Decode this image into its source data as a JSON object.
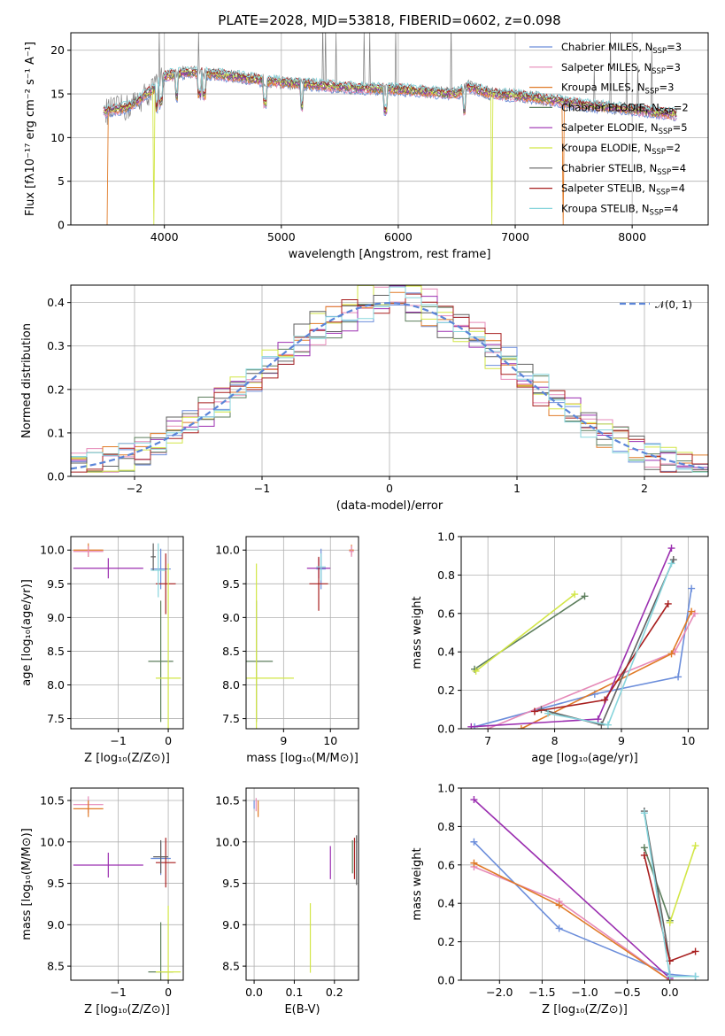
{
  "figure": {
    "title": "PLATE=2028, MJD=53818, FIBERID=0602, z=0.098"
  },
  "palette": [
    "#6c8edb",
    "#e68ab8",
    "#e07b28",
    "#5c7e5c",
    "#9b2fb0",
    "#d2e646",
    "#606060",
    "#a81f1f",
    "#87d5dc"
  ],
  "legend": [
    {
      "text": "Chabrier MILES, N",
      "sub": "SSP",
      "tail": "=3",
      "color": "#6c8edb"
    },
    {
      "text": "Salpeter MILES, N",
      "sub": "SSP",
      "tail": "=3",
      "color": "#e68ab8"
    },
    {
      "text": "Kroupa MILES, N",
      "sub": "SSP",
      "tail": "=3",
      "color": "#e07b28"
    },
    {
      "text": "Chabrier ELODIE, N",
      "sub": "SSP",
      "tail": "=2",
      "color": "#5c7e5c"
    },
    {
      "text": "Salpeter ELODIE, N",
      "sub": "SSP",
      "tail": "=5",
      "color": "#9b2fb0"
    },
    {
      "text": "Kroupa ELODIE, N",
      "sub": "SSP",
      "tail": "=2",
      "color": "#d2e646"
    },
    {
      "text": "Chabrier STELIB, N",
      "sub": "SSP",
      "tail": "=4",
      "color": "#606060"
    },
    {
      "text": "Salpeter STELIB, N",
      "sub": "SSP",
      "tail": "=4",
      "color": "#a81f1f"
    },
    {
      "text": "Kroupa STELIB, N",
      "sub": "SSP",
      "tail": "=4",
      "color": "#87d5dc"
    }
  ],
  "chart_data": [
    {
      "id": "spectrum",
      "type": "line",
      "xlabel": "wavelength [Angstrom, rest frame]",
      "ylabel": "Flux [fλ10⁻¹⁷ erg cm⁻² s⁻¹ A⁻¹]",
      "xlim": [
        3200,
        8650
      ],
      "ylim": [
        0,
        22
      ],
      "xticks": [
        4000,
        5000,
        6000,
        7000,
        8000
      ],
      "yticks": [
        0,
        5,
        10,
        15,
        20
      ],
      "continuum_x": [
        3500,
        3700,
        3900,
        4000,
        4200,
        4400,
        4600,
        4800,
        5000,
        5300,
        5600,
        6000,
        6300,
        6500,
        6600,
        6800,
        7000,
        7200,
        7400,
        7600,
        8000,
        8400
      ],
      "continuum_y": [
        13,
        13.5,
        15.5,
        17,
        17.5,
        17.3,
        17,
        16.6,
        16.3,
        16,
        15.7,
        15.5,
        15.2,
        15,
        15.8,
        15,
        14.8,
        14.5,
        14.1,
        13.7,
        13.2,
        12.6
      ],
      "grid": true
    },
    {
      "id": "residuals",
      "type": "histogram",
      "xlabel": "(data-model)/error",
      "ylabel": "Normed distribution",
      "xlim": [
        -2.5,
        2.5
      ],
      "ylim": [
        0,
        0.44
      ],
      "xticks": [
        -2,
        -1,
        0,
        1,
        2
      ],
      "yticks": [
        0.0,
        0.1,
        0.2,
        0.3,
        0.4
      ],
      "reference": {
        "name": "𝒩(0, 1)",
        "mean": 0,
        "sigma": 1,
        "color": "#5b85d8"
      },
      "bins": 40,
      "grid": true
    },
    {
      "id": "age_vs_Z",
      "type": "errorbar",
      "xlabel": "Z [log₁₀(Z/Z⊙)]",
      "ylabel": "age  [log₁₀(age/yr)]",
      "xlim": [
        -1.95,
        0.3
      ],
      "ylim": [
        7.35,
        10.2
      ],
      "xticks": [
        -1,
        0
      ],
      "yticks": [
        7.5,
        8.0,
        8.5,
        9.0,
        9.5,
        10.0
      ],
      "points": [
        {
          "x": -1.6,
          "y": 10.0,
          "xerr": 0.3,
          "yerr": 0.1,
          "c": 2
        },
        {
          "x": -1.6,
          "y": 9.98,
          "xerr": 0.3,
          "yerr": 0.08,
          "c": 1
        },
        {
          "x": -1.2,
          "y": 9.73,
          "xerr": 0.7,
          "yerr": 0.15,
          "c": 4
        },
        {
          "x": -0.15,
          "y": 9.72,
          "xerr": 0.2,
          "yerr": 0.3,
          "c": 0
        },
        {
          "x": -0.05,
          "y": 9.5,
          "xerr": 0.2,
          "yerr": 0.45,
          "c": 7
        },
        {
          "x": -0.2,
          "y": 9.7,
          "xerr": 0.15,
          "yerr": 0.4,
          "c": 8
        },
        {
          "x": -0.15,
          "y": 8.35,
          "xerr": 0.25,
          "yerr": 0.9,
          "c": 3
        },
        {
          "x": 0.0,
          "y": 8.1,
          "xerr": 0.25,
          "yerr": 1.7,
          "c": 5
        },
        {
          "x": -0.3,
          "y": 9.9,
          "xerr": 0.05,
          "yerr": 0.2,
          "c": 6
        }
      ]
    },
    {
      "id": "age_vs_mass",
      "type": "errorbar",
      "xlabel": "mass [log₁₀(M/M⊙)]",
      "ylabel": "",
      "xlim": [
        8.2,
        10.6
      ],
      "ylim": [
        7.35,
        10.2
      ],
      "xticks": [
        9,
        10
      ],
      "yticks": [
        7.5,
        8.0,
        8.5,
        9.0,
        9.5,
        10.0
      ],
      "points": [
        {
          "x": 10.45,
          "y": 10.0,
          "xerr": 0.05,
          "yerr": 0.08,
          "c": 2
        },
        {
          "x": 10.45,
          "y": 9.98,
          "xerr": 0.05,
          "yerr": 0.08,
          "c": 1
        },
        {
          "x": 9.75,
          "y": 9.73,
          "xerr": 0.25,
          "yerr": 0.15,
          "c": 4
        },
        {
          "x": 9.8,
          "y": 9.72,
          "xerr": 0.1,
          "yerr": 0.3,
          "c": 0
        },
        {
          "x": 9.75,
          "y": 9.5,
          "xerr": 0.2,
          "yerr": 0.4,
          "c": 7
        },
        {
          "x": 9.8,
          "y": 9.75,
          "xerr": 0.1,
          "yerr": 0.2,
          "c": 8
        },
        {
          "x": 8.42,
          "y": 8.35,
          "xerr": 0.35,
          "yerr": 0.9,
          "c": 3
        },
        {
          "x": 8.42,
          "y": 8.1,
          "xerr": 0.8,
          "yerr": 1.7,
          "c": 5
        }
      ]
    },
    {
      "id": "massweight_vs_age",
      "type": "line",
      "xlabel": "age  [log₁₀(age/yr)]",
      "ylabel": "mass weight",
      "xlim": [
        6.6,
        10.3
      ],
      "ylim": [
        0,
        1.0
      ],
      "xticks": [
        7,
        8,
        9,
        10
      ],
      "yticks": [
        0.0,
        0.2,
        0.4,
        0.6,
        0.8,
        1.0
      ],
      "series": [
        {
          "c": 0,
          "x": [
            6.8,
            8.6,
            9.85,
            10.05
          ],
          "y": [
            0.01,
            0.18,
            0.27,
            0.73
          ]
        },
        {
          "c": 1,
          "x": [
            7.0,
            9.8,
            10.1
          ],
          "y": [
            0.0,
            0.4,
            0.6
          ]
        },
        {
          "c": 2,
          "x": [
            7.5,
            9.75,
            10.05
          ],
          "y": [
            0.0,
            0.39,
            0.61
          ]
        },
        {
          "c": 3,
          "x": [
            6.8,
            8.45
          ],
          "y": [
            0.31,
            0.69
          ]
        },
        {
          "c": 4,
          "x": [
            6.75,
            8.65,
            9.75
          ],
          "y": [
            0.01,
            0.05,
            0.94
          ]
        },
        {
          "c": 5,
          "x": [
            6.82,
            8.3
          ],
          "y": [
            0.3,
            0.7
          ]
        },
        {
          "c": 6,
          "x": [
            7.8,
            8.7,
            9.78
          ],
          "y": [
            0.1,
            0.02,
            0.88
          ]
        },
        {
          "c": 7,
          "x": [
            7.7,
            8.75,
            9.7
          ],
          "y": [
            0.09,
            0.15,
            0.65
          ]
        },
        {
          "c": 8,
          "x": [
            7.9,
            8.8,
            9.75
          ],
          "y": [
            0.08,
            0.02,
            0.86
          ]
        }
      ]
    },
    {
      "id": "mass_vs_Z",
      "type": "errorbar",
      "xlabel": "Z [log₁₀(Z/Z⊙)]",
      "ylabel": "mass [log₁₀(M/M⊙)]",
      "xlim": [
        -1.95,
        0.3
      ],
      "ylim": [
        8.33,
        10.65
      ],
      "xticks": [
        -1,
        0
      ],
      "yticks": [
        8.5,
        9.0,
        9.5,
        10.0,
        10.5
      ],
      "points": [
        {
          "x": -1.6,
          "y": 10.45,
          "xerr": 0.3,
          "yerr": 0.1,
          "c": 1
        },
        {
          "x": -1.6,
          "y": 10.4,
          "xerr": 0.3,
          "yerr": 0.1,
          "c": 2
        },
        {
          "x": -1.2,
          "y": 9.72,
          "xerr": 0.7,
          "yerr": 0.15,
          "c": 4
        },
        {
          "x": -0.15,
          "y": 9.8,
          "xerr": 0.2,
          "yerr": 0.2,
          "c": 0
        },
        {
          "x": -0.05,
          "y": 9.75,
          "xerr": 0.2,
          "yerr": 0.3,
          "c": 7
        },
        {
          "x": -0.15,
          "y": 9.82,
          "xerr": 0.15,
          "yerr": 0.2,
          "c": 6
        },
        {
          "x": -0.15,
          "y": 8.43,
          "xerr": 0.25,
          "yerr": 0.6,
          "c": 3
        },
        {
          "x": 0.0,
          "y": 8.43,
          "xerr": 0.25,
          "yerr": 0.8,
          "c": 5
        }
      ]
    },
    {
      "id": "mass_vs_EBV",
      "type": "errorbar",
      "xlabel": "E(B-V)",
      "ylabel": "",
      "xlim": [
        -0.02,
        0.26
      ],
      "ylim": [
        8.33,
        10.65
      ],
      "xticks": [
        0.0,
        0.1,
        0.2
      ],
      "yticks": [
        8.5,
        9.0,
        9.5,
        10.0,
        10.5
      ],
      "points": [
        {
          "x": 0.005,
          "y": 10.45,
          "xerr": 0,
          "yerr": 0.08,
          "c": 1
        },
        {
          "x": 0.01,
          "y": 10.4,
          "xerr": 0,
          "yerr": 0.1,
          "c": 2
        },
        {
          "x": 0.0,
          "y": 10.45,
          "xerr": 0,
          "yerr": 0.05,
          "c": 0
        },
        {
          "x": 0.19,
          "y": 9.75,
          "xerr": 0,
          "yerr": 0.2,
          "c": 4
        },
        {
          "x": 0.25,
          "y": 9.8,
          "xerr": 0,
          "yerr": 0.25,
          "c": 7
        },
        {
          "x": 0.255,
          "y": 9.78,
          "xerr": 0,
          "yerr": 0.3,
          "c": 6
        },
        {
          "x": 0.245,
          "y": 9.82,
          "xerr": 0,
          "yerr": 0.2,
          "c": 3
        },
        {
          "x": 0.14,
          "y": 8.84,
          "xerr": 0,
          "yerr": 0.42,
          "c": 5
        }
      ]
    },
    {
      "id": "massweight_vs_Z",
      "type": "line",
      "xlabel": "Z [log₁₀(Z/Z⊙)]",
      "ylabel": "mass weight",
      "xlim": [
        -2.45,
        0.45
      ],
      "ylim": [
        0,
        1.0
      ],
      "xticks": [
        -2.0,
        -1.5,
        -1.0,
        -0.5,
        0.0
      ],
      "yticks": [
        0.0,
        0.2,
        0.4,
        0.6,
        0.8,
        1.0
      ],
      "series": [
        {
          "c": 0,
          "x": [
            -2.3,
            -1.3,
            0.0,
            0.3
          ],
          "y": [
            0.72,
            0.27,
            0.03,
            0.02
          ]
        },
        {
          "c": 1,
          "x": [
            -2.3,
            -1.3,
            0.0
          ],
          "y": [
            0.59,
            0.41,
            0.0
          ]
        },
        {
          "c": 2,
          "x": [
            -2.3,
            -1.3,
            0.0
          ],
          "y": [
            0.61,
            0.39,
            0.0
          ]
        },
        {
          "c": 4,
          "x": [
            -2.3,
            0.0
          ],
          "y": [
            0.94,
            0.01
          ]
        },
        {
          "c": 3,
          "x": [
            -0.3,
            0.0
          ],
          "y": [
            0.69,
            0.31
          ]
        },
        {
          "c": 5,
          "x": [
            0.0,
            0.3
          ],
          "y": [
            0.3,
            0.7
          ]
        },
        {
          "c": 6,
          "x": [
            -0.3,
            0.0
          ],
          "y": [
            0.88,
            0.1
          ]
        },
        {
          "c": 7,
          "x": [
            -0.3,
            0.0,
            0.3
          ],
          "y": [
            0.65,
            0.1,
            0.15
          ]
        },
        {
          "c": 8,
          "x": [
            -0.3,
            0.0,
            0.3
          ],
          "y": [
            0.87,
            0.02,
            0.02
          ]
        }
      ]
    }
  ]
}
